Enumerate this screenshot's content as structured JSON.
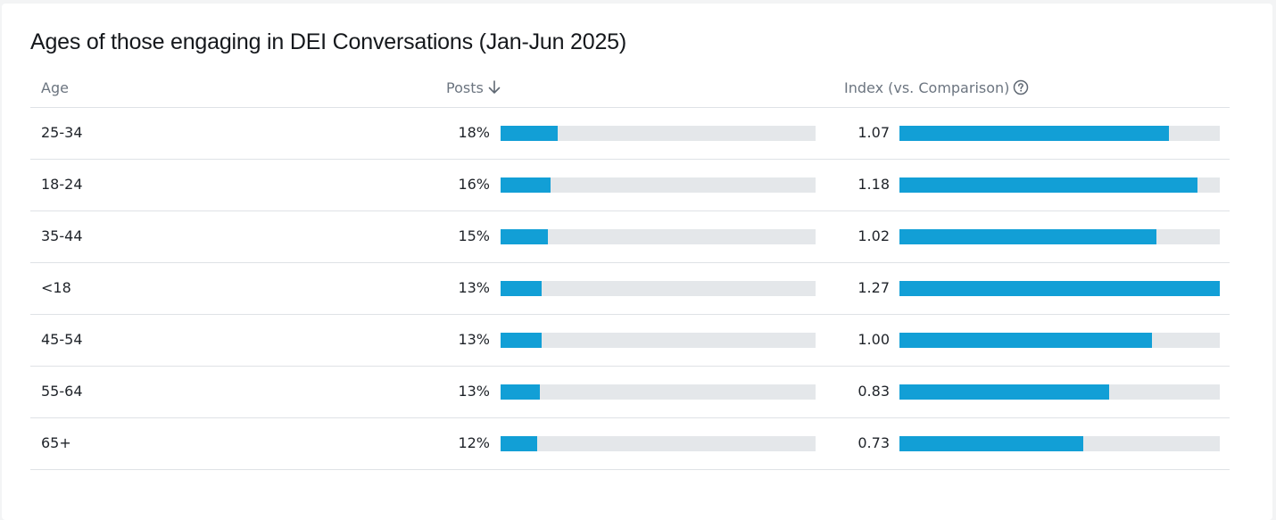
{
  "chart_data": {
    "type": "table",
    "title": "Ages of those engaging in DEI Conversations (Jan-Jun 2025)",
    "columns": {
      "age": "Age",
      "posts": "Posts",
      "index": "Index (vs. Comparison)"
    },
    "sort": {
      "column": "posts",
      "direction": "descending",
      "icon": "arrow-down-icon"
    },
    "index_help_icon": "question-circle-icon",
    "bar_color": "#129fd6",
    "track_color": "#e4e7ea",
    "posts_axis_max_percent": 100,
    "index_axis_max": 1.27,
    "rows": [
      {
        "age": "25-34",
        "posts": "18%",
        "posts_value": 18,
        "index": "1.07",
        "index_value": 1.07
      },
      {
        "age": "18-24",
        "posts": "16%",
        "posts_value": 16,
        "index": "1.18",
        "index_value": 1.18
      },
      {
        "age": "35-44",
        "posts": "15%",
        "posts_value": 15,
        "index": "1.02",
        "index_value": 1.02
      },
      {
        "age": "<18",
        "posts": "13%",
        "posts_value": 13,
        "index": "1.27",
        "index_value": 1.27
      },
      {
        "age": "45-54",
        "posts": "13%",
        "posts_value": 13,
        "index": "1.00",
        "index_value": 1.0
      },
      {
        "age": "55-64",
        "posts": "13%",
        "posts_value": 12.5,
        "index": "0.83",
        "index_value": 0.83
      },
      {
        "age": "65+",
        "posts": "12%",
        "posts_value": 11.5,
        "index": "0.73",
        "index_value": 0.73
      }
    ]
  }
}
